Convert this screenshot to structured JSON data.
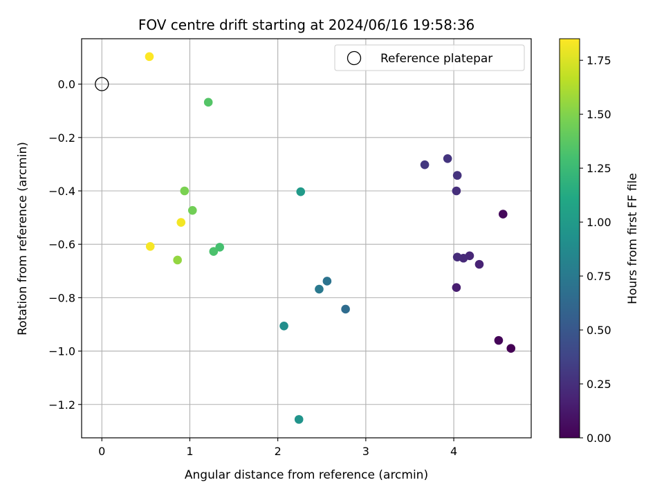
{
  "chart_data": {
    "type": "scatter",
    "title": "FOV centre drift starting at 2024/06/16 19:58:36",
    "xlabel": "Angular distance from reference (arcmin)",
    "ylabel": "Rotation from reference (arcmin)",
    "xlim": [
      -0.23,
      4.88
    ],
    "ylim": [
      -1.325,
      0.17
    ],
    "xticks": [
      0,
      1,
      2,
      3,
      4
    ],
    "yticks": [
      0.0,
      -0.2,
      -0.4,
      -0.6,
      -0.8,
      -1.0,
      -1.2
    ],
    "xtick_labels": [
      "0",
      "1",
      "2",
      "3",
      "4"
    ],
    "ytick_labels": [
      "0.0",
      "−0.2",
      "−0.4",
      "−0.6",
      "−0.8",
      "−1.0",
      "−1.2"
    ],
    "grid": true,
    "legend": {
      "position": "top-right",
      "entries": [
        "Reference platepar"
      ]
    },
    "reference_point": {
      "x": 0.0,
      "y": 0.0
    },
    "colorbar": {
      "label": "Hours from first FF file",
      "range": [
        0.0,
        1.85
      ],
      "ticks": [
        0.0,
        0.25,
        0.5,
        0.75,
        1.0,
        1.25,
        1.5,
        1.75
      ],
      "tick_labels": [
        "0.00",
        "0.25",
        "0.50",
        "0.75",
        "1.00",
        "1.25",
        "1.50",
        "1.75"
      ],
      "colormap": "viridis"
    },
    "points": [
      {
        "x": 4.65,
        "y": -0.99,
        "hours": 0.0
      },
      {
        "x": 4.51,
        "y": -0.96,
        "hours": 0.02
      },
      {
        "x": 4.56,
        "y": -0.487,
        "hours": 0.04
      },
      {
        "x": 4.03,
        "y": -0.762,
        "hours": 0.15
      },
      {
        "x": 4.29,
        "y": -0.675,
        "hours": 0.18
      },
      {
        "x": 4.18,
        "y": -0.643,
        "hours": 0.2
      },
      {
        "x": 4.11,
        "y": -0.652,
        "hours": 0.22
      },
      {
        "x": 4.04,
        "y": -0.648,
        "hours": 0.23
      },
      {
        "x": 4.03,
        "y": -0.4,
        "hours": 0.25
      },
      {
        "x": 4.04,
        "y": -0.342,
        "hours": 0.27
      },
      {
        "x": 3.93,
        "y": -0.279,
        "hours": 0.28
      },
      {
        "x": 3.67,
        "y": -0.302,
        "hours": 0.3
      },
      {
        "x": 2.77,
        "y": -0.843,
        "hours": 0.65
      },
      {
        "x": 2.56,
        "y": -0.738,
        "hours": 0.7
      },
      {
        "x": 2.47,
        "y": -0.768,
        "hours": 0.75
      },
      {
        "x": 2.07,
        "y": -0.906,
        "hours": 0.9
      },
      {
        "x": 2.24,
        "y": -1.256,
        "hours": 0.95
      },
      {
        "x": 2.26,
        "y": -0.403,
        "hours": 1.0
      },
      {
        "x": 1.34,
        "y": -0.611,
        "hours": 1.3
      },
      {
        "x": 1.27,
        "y": -0.627,
        "hours": 1.32
      },
      {
        "x": 1.21,
        "y": -0.068,
        "hours": 1.35
      },
      {
        "x": 1.03,
        "y": -0.473,
        "hours": 1.45
      },
      {
        "x": 0.94,
        "y": -0.4,
        "hours": 1.48
      },
      {
        "x": 0.86,
        "y": -0.659,
        "hours": 1.55
      },
      {
        "x": 0.9,
        "y": -0.518,
        "hours": 1.82
      },
      {
        "x": 0.55,
        "y": -0.608,
        "hours": 1.83
      },
      {
        "x": 0.54,
        "y": 0.103,
        "hours": 1.85
      }
    ]
  }
}
